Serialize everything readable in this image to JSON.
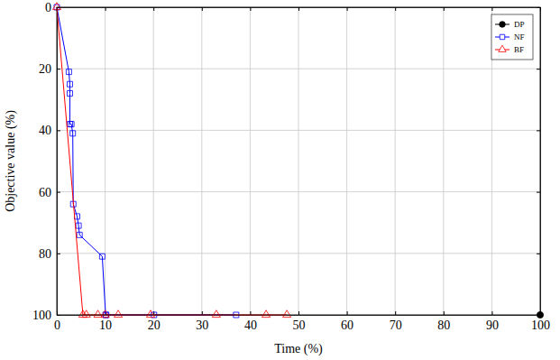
{
  "chart_data": {
    "type": "line",
    "x_label": "Time (%)",
    "y_label": "Objective value (%)",
    "xlim": [
      0,
      100
    ],
    "xticks": [
      0,
      10,
      20,
      30,
      40,
      50,
      60,
      70,
      80,
      90,
      100
    ],
    "ylim": [
      100,
      0
    ],
    "yticks": [
      0,
      20,
      40,
      60,
      80,
      100
    ],
    "grid": true,
    "legend": "upper right",
    "series": [
      {
        "name": "DP",
        "color": "#000000",
        "marker": "circle",
        "x": [
          100
        ],
        "values": [
          100
        ]
      },
      {
        "name": "NF",
        "color": "#0000ff",
        "marker": "square",
        "x": [
          0,
          2.5,
          2.7,
          2.7,
          2.7,
          3.0,
          3.3,
          3.4,
          4.2,
          4.5,
          4.7,
          9.4,
          10.1,
          10.2,
          20.1,
          37.1
        ],
        "values": [
          0,
          21,
          25,
          28,
          38,
          38,
          41,
          64,
          68,
          71,
          74,
          81,
          100,
          100,
          100,
          100
        ]
      },
      {
        "name": "BF",
        "color": "#ff0000",
        "marker": "triangle",
        "x": [
          0,
          5.4,
          6.1,
          8.5,
          10.0,
          12.7,
          19.4,
          33.0,
          43.3,
          47.6
        ],
        "values": [
          0,
          100,
          100,
          100,
          100,
          100,
          100,
          100,
          100,
          100
        ]
      }
    ]
  }
}
